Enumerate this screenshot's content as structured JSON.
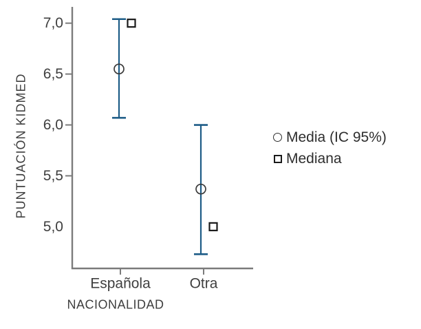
{
  "chart_data": {
    "type": "errorbar",
    "title": "",
    "xlabel": "NACIONALIDAD",
    "ylabel": "PUNTUACIÓN KIDMED",
    "categories": [
      "Española",
      "Otra"
    ],
    "series": [
      {
        "name": "Media (IC 95%)",
        "marker": "circle",
        "values": [
          6.55,
          5.37
        ],
        "ci_low": [
          6.07,
          4.73
        ],
        "ci_high": [
          7.04,
          6.0
        ]
      },
      {
        "name": "Mediana",
        "marker": "square",
        "values": [
          7.0,
          5.0
        ]
      }
    ],
    "y_ticks": [
      {
        "label": "7,0",
        "value": 7.0,
        "has_tick": true
      },
      {
        "label": "6,5",
        "value": 6.5,
        "has_tick": true
      },
      {
        "label": "6,0",
        "value": 6.0,
        "has_tick": true
      },
      {
        "label": "5,5",
        "value": 5.5,
        "has_tick": true
      },
      {
        "label": "5,0",
        "value": 5.0,
        "has_tick": false
      }
    ],
    "ylim": [
      4.59,
      7.16
    ],
    "decimal_separator": ",",
    "grid": false,
    "legend_position": "right",
    "colors": {
      "error_bar": "#1d5c87",
      "mean_marker": "#3a3a3a",
      "median_marker": "#1a1a1a",
      "axis": "#7b7b7b",
      "tick_text": "#3f3f3f",
      "legend_text": "#2e2e2e"
    }
  },
  "legend": {
    "items": [
      {
        "label": "Media (IC 95%)",
        "marker": "circle"
      },
      {
        "label": "Mediana",
        "marker": "square"
      }
    ]
  }
}
